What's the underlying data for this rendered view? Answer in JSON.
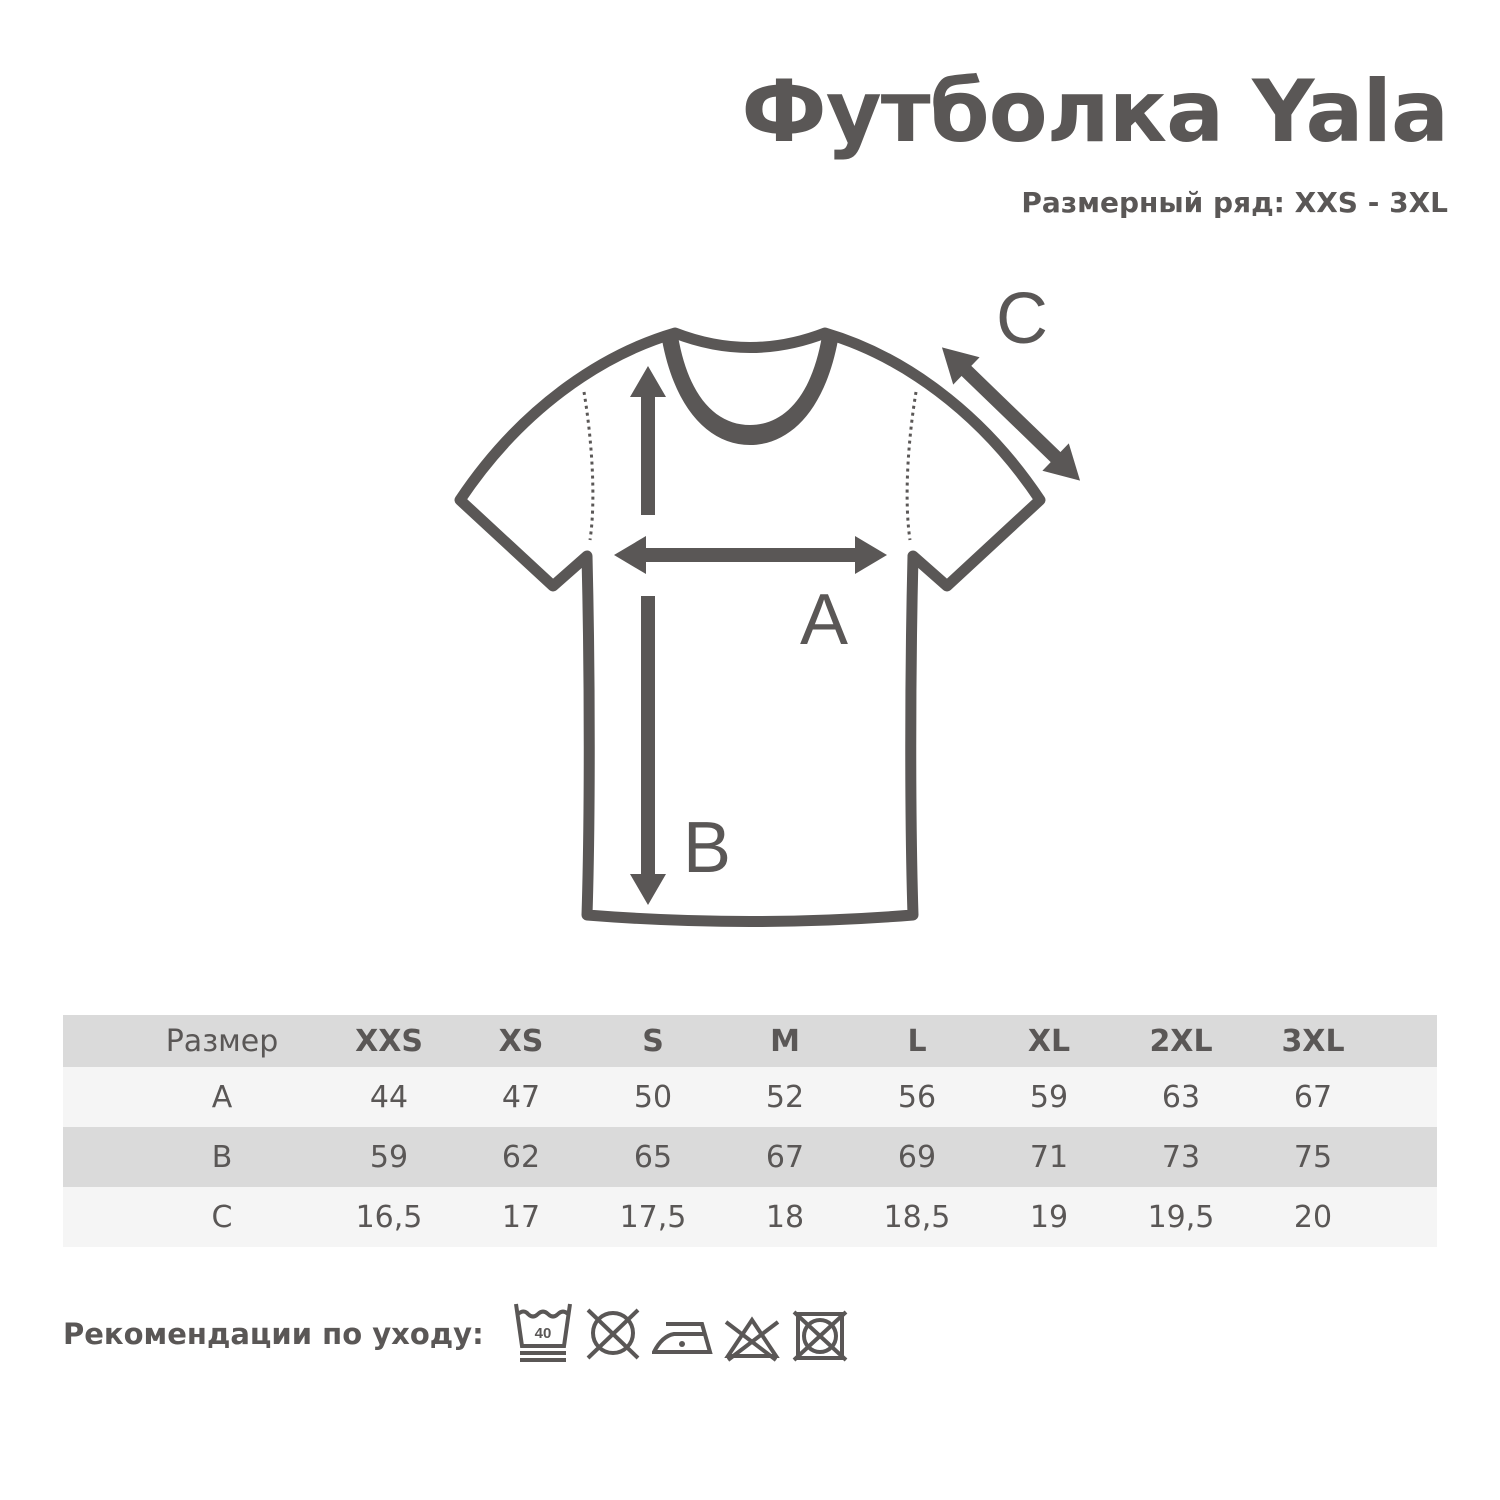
{
  "header": {
    "title": "Футболка Yala",
    "subtitle": "Размерный ряд: XXS - 3XL"
  },
  "diagram": {
    "labels": {
      "a": "A",
      "b": "B",
      "c": "C"
    }
  },
  "size_table": {
    "columns": [
      "Размер",
      "XXS",
      "XS",
      "S",
      "M",
      "L",
      "XL",
      "2XL",
      "3XL"
    ],
    "rows": [
      [
        "A",
        "44",
        "47",
        "50",
        "52",
        "56",
        "59",
        "63",
        "67"
      ],
      [
        "B",
        "59",
        "62",
        "65",
        "67",
        "69",
        "71",
        "73",
        "75"
      ],
      [
        "C",
        "16,5",
        "17",
        "17,5",
        "18",
        "18,5",
        "19",
        "19,5",
        "20"
      ]
    ]
  },
  "care": {
    "label": "Рекомендации по уходу:",
    "icons": [
      "wash-40-gentle-icon",
      "no-tumble-dry-icon",
      "iron-low-icon",
      "no-bleach-icon",
      "no-dry-clean-tumble-icon"
    ],
    "wash_temperature": "40"
  },
  "colors": {
    "ink": "#5a5756",
    "row_dark": "#dadada",
    "row_light": "#f5f5f5"
  }
}
